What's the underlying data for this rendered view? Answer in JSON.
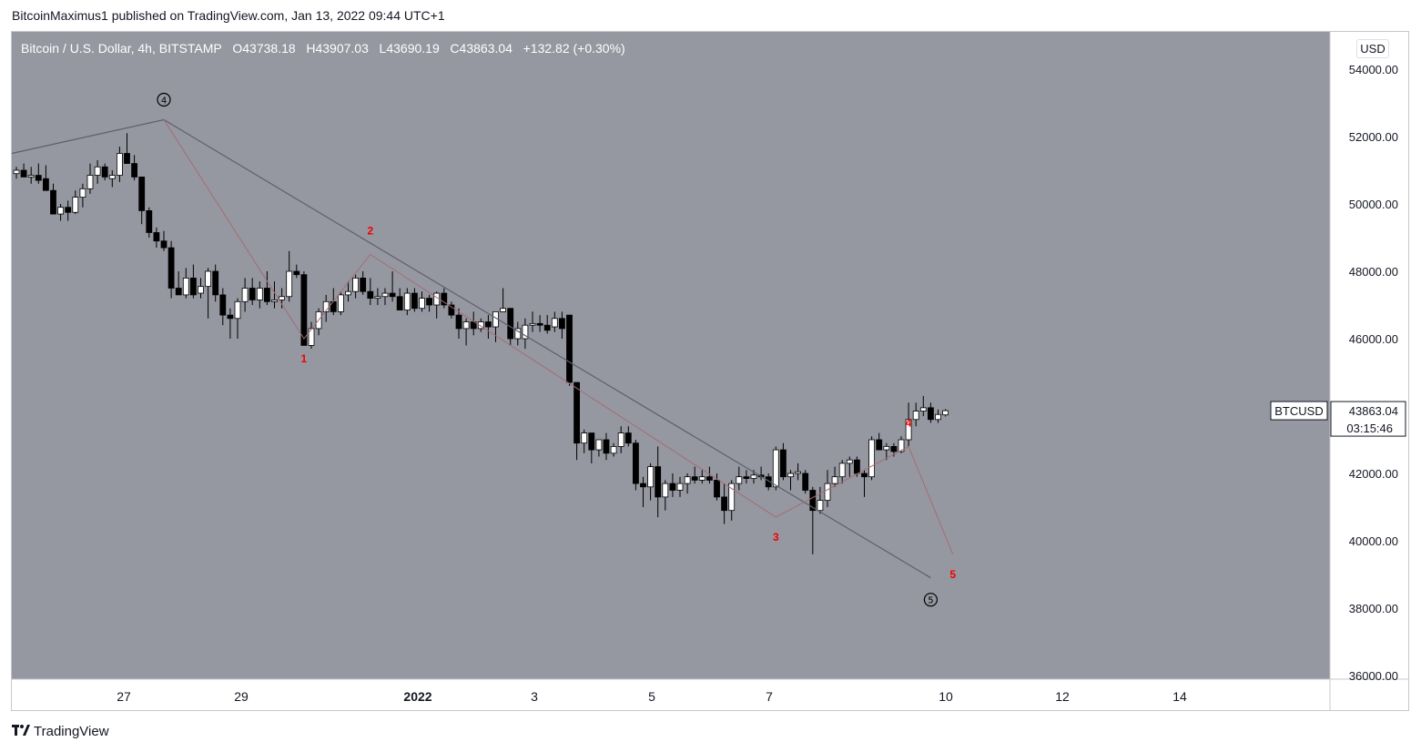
{
  "published_line": "BitcoinMaximus1 published on TradingView.com, Jan 13, 2022 09:44 UTC+1",
  "header": {
    "symbol": "Bitcoin / U.S. Dollar, 4h, BITSTAMP",
    "o_label": "O",
    "o_value": "43738.18",
    "h_label": "H",
    "h_value": "43907.03",
    "l_label": "L",
    "l_value": "43690.19",
    "c_label": "C",
    "c_value": "43863.04",
    "change": "+132.82 (+0.30%)"
  },
  "currency_button": "USD",
  "price_tag": {
    "symbol": "BTCUSD",
    "price": "43863.04",
    "countdown": "03:15:46"
  },
  "footer": {
    "brand": "TradingView"
  },
  "colors": {
    "plot_bg": "#9598a1",
    "up_body": "#ffffff",
    "down_body": "#000000",
    "wick": "#000000",
    "wave_major": "#5d606b",
    "wave_minor": "#a66b74",
    "label_red": "#f20000"
  },
  "chart_data": {
    "type": "candlestick",
    "timeframe": "4h",
    "y_axis": {
      "ticks": [
        "54000.00",
        "52000.00",
        "50000.00",
        "48000.00",
        "46000.00",
        "44000.00",
        "42000.00",
        "40000.00",
        "38000.00",
        "36000.00"
      ],
      "range": [
        36000,
        54600
      ]
    },
    "x_axis": {
      "ticks": [
        "27",
        "29",
        "2022",
        "3",
        "5",
        "7",
        "10",
        "12",
        "14"
      ],
      "tick_bar_index": [
        7,
        15,
        27,
        35,
        43,
        51,
        63,
        71,
        79
      ],
      "bold_ticks": [
        "2022"
      ]
    },
    "candles": [
      {
        "o": 50900,
        "h": 51100,
        "l": 50750,
        "c": 51000
      },
      {
        "o": 51000,
        "h": 51200,
        "l": 50800,
        "c": 50800
      },
      {
        "o": 50800,
        "h": 51100,
        "l": 50600,
        "c": 50850
      },
      {
        "o": 50850,
        "h": 51200,
        "l": 50600,
        "c": 50700
      },
      {
        "o": 50750,
        "h": 51150,
        "l": 50500,
        "c": 50400
      },
      {
        "o": 50400,
        "h": 50600,
        "l": 49700,
        "c": 49700
      },
      {
        "o": 49700,
        "h": 50000,
        "l": 49500,
        "c": 49900
      },
      {
        "o": 49900,
        "h": 50100,
        "l": 49500,
        "c": 49750
      },
      {
        "o": 49750,
        "h": 50400,
        "l": 49700,
        "c": 50200
      },
      {
        "o": 50200,
        "h": 50600,
        "l": 49900,
        "c": 50450
      },
      {
        "o": 50450,
        "h": 51200,
        "l": 50300,
        "c": 50850
      },
      {
        "o": 50850,
        "h": 51300,
        "l": 50600,
        "c": 51100
      },
      {
        "o": 51100,
        "h": 51200,
        "l": 50700,
        "c": 50800
      },
      {
        "o": 50750,
        "h": 51000,
        "l": 50500,
        "c": 50850
      },
      {
        "o": 50850,
        "h": 51700,
        "l": 50650,
        "c": 51500
      },
      {
        "o": 51500,
        "h": 52100,
        "l": 51200,
        "c": 51200
      },
      {
        "o": 51200,
        "h": 51450,
        "l": 50700,
        "c": 50800
      },
      {
        "o": 50800,
        "h": 50800,
        "l": 49400,
        "c": 49800
      },
      {
        "o": 49800,
        "h": 49900,
        "l": 49000,
        "c": 49150
      },
      {
        "o": 49150,
        "h": 49300,
        "l": 48700,
        "c": 48900
      },
      {
        "o": 48900,
        "h": 49200,
        "l": 48600,
        "c": 48700
      },
      {
        "o": 48700,
        "h": 48900,
        "l": 47200,
        "c": 47500
      },
      {
        "o": 47500,
        "h": 48000,
        "l": 47300,
        "c": 47300
      },
      {
        "o": 47300,
        "h": 48100,
        "l": 47200,
        "c": 47800
      },
      {
        "o": 47800,
        "h": 48200,
        "l": 47200,
        "c": 47300
      },
      {
        "o": 47350,
        "h": 47800,
        "l": 47200,
        "c": 47550
      },
      {
        "o": 47550,
        "h": 48100,
        "l": 46600,
        "c": 48000
      },
      {
        "o": 48000,
        "h": 48200,
        "l": 47100,
        "c": 47300
      },
      {
        "o": 47300,
        "h": 47500,
        "l": 46400,
        "c": 46700
      },
      {
        "o": 46700,
        "h": 46900,
        "l": 46000,
        "c": 46600
      },
      {
        "o": 46600,
        "h": 47200,
        "l": 46000,
        "c": 47100
      },
      {
        "o": 47100,
        "h": 47800,
        "l": 46800,
        "c": 47500
      },
      {
        "o": 47500,
        "h": 47800,
        "l": 47000,
        "c": 47150
      },
      {
        "o": 47150,
        "h": 47700,
        "l": 46900,
        "c": 47500
      },
      {
        "o": 47500,
        "h": 48000,
        "l": 47000,
        "c": 47100
      },
      {
        "o": 47100,
        "h": 47700,
        "l": 46900,
        "c": 47150
      },
      {
        "o": 47150,
        "h": 47500,
        "l": 46900,
        "c": 47250
      },
      {
        "o": 47250,
        "h": 48600,
        "l": 47100,
        "c": 48000
      },
      {
        "o": 48000,
        "h": 48200,
        "l": 47800,
        "c": 47900
      },
      {
        "o": 47900,
        "h": 48000,
        "l": 45800,
        "c": 45800
      },
      {
        "o": 45800,
        "h": 46500,
        "l": 45700,
        "c": 46300
      },
      {
        "o": 46300,
        "h": 46900,
        "l": 46100,
        "c": 46800
      },
      {
        "o": 46800,
        "h": 47300,
        "l": 46500,
        "c": 47100
      },
      {
        "o": 47100,
        "h": 47500,
        "l": 46700,
        "c": 46800
      },
      {
        "o": 46800,
        "h": 47400,
        "l": 46700,
        "c": 47300
      },
      {
        "o": 47300,
        "h": 47700,
        "l": 47100,
        "c": 47400
      },
      {
        "o": 47400,
        "h": 47900,
        "l": 47200,
        "c": 47800
      },
      {
        "o": 47800,
        "h": 48000,
        "l": 47300,
        "c": 47400
      },
      {
        "o": 47400,
        "h": 47800,
        "l": 47000,
        "c": 47200
      },
      {
        "o": 47200,
        "h": 47500,
        "l": 47000,
        "c": 47250
      },
      {
        "o": 47250,
        "h": 47500,
        "l": 47000,
        "c": 47350
      },
      {
        "o": 47350,
        "h": 48000,
        "l": 47100,
        "c": 47250
      },
      {
        "o": 47250,
        "h": 47500,
        "l": 46900,
        "c": 46850
      },
      {
        "o": 46850,
        "h": 47500,
        "l": 46700,
        "c": 47350
      },
      {
        "o": 47350,
        "h": 47500,
        "l": 46800,
        "c": 46900
      },
      {
        "o": 46900,
        "h": 47400,
        "l": 46800,
        "c": 47200
      },
      {
        "o": 47200,
        "h": 47300,
        "l": 46800,
        "c": 47000
      },
      {
        "o": 47000,
        "h": 47400,
        "l": 46600,
        "c": 47350
      },
      {
        "o": 47350,
        "h": 47500,
        "l": 46900,
        "c": 47000
      },
      {
        "o": 47000,
        "h": 47100,
        "l": 46600,
        "c": 46700
      },
      {
        "o": 46700,
        "h": 46900,
        "l": 46000,
        "c": 46300
      },
      {
        "o": 46300,
        "h": 46600,
        "l": 45800,
        "c": 46500
      },
      {
        "o": 46500,
        "h": 46800,
        "l": 46100,
        "c": 46300
      },
      {
        "o": 46300,
        "h": 46600,
        "l": 46200,
        "c": 46500
      },
      {
        "o": 46500,
        "h": 46700,
        "l": 46000,
        "c": 46350
      },
      {
        "o": 46350,
        "h": 46800,
        "l": 45900,
        "c": 46800
      },
      {
        "o": 46800,
        "h": 47500,
        "l": 46800,
        "c": 46900
      },
      {
        "o": 46900,
        "h": 46900,
        "l": 45800,
        "c": 46000
      },
      {
        "o": 46000,
        "h": 46500,
        "l": 45800,
        "c": 46300
      },
      {
        "o": 46000,
        "h": 46600,
        "l": 45700,
        "c": 46400
      },
      {
        "o": 46400,
        "h": 46800,
        "l": 46200,
        "c": 46450
      },
      {
        "o": 46450,
        "h": 46700,
        "l": 46200,
        "c": 46400
      },
      {
        "o": 46400,
        "h": 46700,
        "l": 46150,
        "c": 46250
      },
      {
        "o": 46350,
        "h": 46800,
        "l": 46200,
        "c": 46600
      },
      {
        "o": 46600,
        "h": 46800,
        "l": 46000,
        "c": 46300
      },
      {
        "o": 46700,
        "h": 46700,
        "l": 44600,
        "c": 44700
      },
      {
        "o": 44700,
        "h": 44700,
        "l": 42400,
        "c": 42900
      },
      {
        "o": 42900,
        "h": 43300,
        "l": 42600,
        "c": 43200
      },
      {
        "o": 43200,
        "h": 43200,
        "l": 42300,
        "c": 42700
      },
      {
        "o": 42700,
        "h": 43000,
        "l": 42500,
        "c": 43000
      },
      {
        "o": 43000,
        "h": 43200,
        "l": 42400,
        "c": 42600
      },
      {
        "o": 42600,
        "h": 42900,
        "l": 42500,
        "c": 42800
      },
      {
        "o": 42800,
        "h": 43400,
        "l": 42600,
        "c": 43200
      },
      {
        "o": 43200,
        "h": 43400,
        "l": 42800,
        "c": 42900
      },
      {
        "o": 42900,
        "h": 43000,
        "l": 41500,
        "c": 41700
      },
      {
        "o": 41700,
        "h": 41900,
        "l": 41000,
        "c": 41600
      },
      {
        "o": 41600,
        "h": 42300,
        "l": 41200,
        "c": 42200
      },
      {
        "o": 42200,
        "h": 42800,
        "l": 40700,
        "c": 41300
      },
      {
        "o": 41300,
        "h": 41800,
        "l": 40900,
        "c": 41700
      },
      {
        "o": 41700,
        "h": 42000,
        "l": 41300,
        "c": 41500
      },
      {
        "o": 41500,
        "h": 41900,
        "l": 41300,
        "c": 41700
      },
      {
        "o": 41700,
        "h": 42000,
        "l": 41400,
        "c": 41900
      },
      {
        "o": 41900,
        "h": 42200,
        "l": 41700,
        "c": 41800
      },
      {
        "o": 41800,
        "h": 42100,
        "l": 41700,
        "c": 41900
      },
      {
        "o": 41900,
        "h": 42200,
        "l": 41700,
        "c": 41800
      },
      {
        "o": 41800,
        "h": 42000,
        "l": 41200,
        "c": 41300
      },
      {
        "o": 41300,
        "h": 41700,
        "l": 40500,
        "c": 40900
      },
      {
        "o": 40900,
        "h": 41800,
        "l": 40600,
        "c": 41700
      },
      {
        "o": 41700,
        "h": 42200,
        "l": 41500,
        "c": 41900
      },
      {
        "o": 41900,
        "h": 42100,
        "l": 41700,
        "c": 41850
      },
      {
        "o": 41850,
        "h": 42100,
        "l": 41700,
        "c": 41950
      },
      {
        "o": 41950,
        "h": 42200,
        "l": 41800,
        "c": 41900
      },
      {
        "o": 41900,
        "h": 42000,
        "l": 41500,
        "c": 41600
      },
      {
        "o": 41600,
        "h": 42800,
        "l": 41500,
        "c": 42700
      },
      {
        "o": 42700,
        "h": 42900,
        "l": 41800,
        "c": 41900
      },
      {
        "o": 41900,
        "h": 42100,
        "l": 41500,
        "c": 42000
      },
      {
        "o": 42000,
        "h": 42300,
        "l": 41800,
        "c": 42050
      },
      {
        "o": 42000,
        "h": 42100,
        "l": 41400,
        "c": 41500
      },
      {
        "o": 41500,
        "h": 41600,
        "l": 39600,
        "c": 40900
      },
      {
        "o": 40900,
        "h": 41600,
        "l": 40800,
        "c": 41200
      },
      {
        "o": 41200,
        "h": 42100,
        "l": 41000,
        "c": 41700
      },
      {
        "o": 41700,
        "h": 42200,
        "l": 41600,
        "c": 41900
      },
      {
        "o": 41900,
        "h": 42400,
        "l": 41700,
        "c": 42300
      },
      {
        "o": 42300,
        "h": 42500,
        "l": 41900,
        "c": 42400
      },
      {
        "o": 42400,
        "h": 42500,
        "l": 41900,
        "c": 42000
      },
      {
        "o": 42000,
        "h": 42100,
        "l": 41300,
        "c": 41900
      },
      {
        "o": 41900,
        "h": 43100,
        "l": 41800,
        "c": 43000
      },
      {
        "o": 43000,
        "h": 43200,
        "l": 42700,
        "c": 42700
      },
      {
        "o": 42700,
        "h": 42900,
        "l": 42400,
        "c": 42800
      },
      {
        "o": 42800,
        "h": 42900,
        "l": 42500,
        "c": 42650
      },
      {
        "o": 42650,
        "h": 43100,
        "l": 42600,
        "c": 43000
      },
      {
        "o": 43000,
        "h": 44100,
        "l": 42800,
        "c": 43600
      },
      {
        "o": 43600,
        "h": 44100,
        "l": 43400,
        "c": 43850
      },
      {
        "o": 43850,
        "h": 44300,
        "l": 43700,
        "c": 43950
      },
      {
        "o": 43950,
        "h": 44100,
        "l": 43500,
        "c": 43600
      },
      {
        "o": 43600,
        "h": 43900,
        "l": 43500,
        "c": 43750
      },
      {
        "o": 43738.18,
        "h": 43907.03,
        "l": 43690.19,
        "c": 43863.04
      }
    ],
    "wave_major": {
      "points": [
        {
          "bar": 20,
          "price": 52500,
          "label": "④"
        },
        {
          "bar": 124,
          "price": 38900,
          "label": "⑤"
        }
      ],
      "start_price": 51500,
      "start_bar": 0
    },
    "wave_minor": {
      "points": [
        {
          "bar": 20,
          "price": 52500,
          "label": ""
        },
        {
          "bar": 39,
          "price": 46000,
          "label": "1"
        },
        {
          "bar": 48,
          "price": 48500,
          "label": "2"
        },
        {
          "bar": 103,
          "price": 40700,
          "label": "3"
        },
        {
          "bar": 121,
          "price": 42800,
          "label": "4"
        },
        {
          "bar": 127,
          "price": 39600,
          "label": "5"
        }
      ]
    },
    "last_price": 43863.04,
    "title": "Bitcoin / U.S. Dollar, 4h, BITSTAMP",
    "legend": "top-left"
  }
}
